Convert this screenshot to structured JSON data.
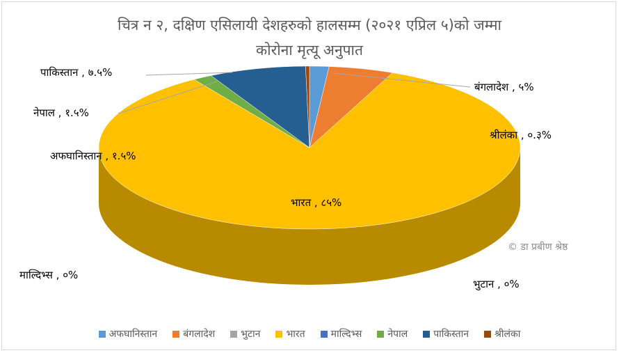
{
  "chart_data": {
    "type": "pie",
    "title_line1": "चित्र न २, दक्षिण एसिलायी देशहरुको हालसम्म (२०२१ एप्रिल ५)को जम्मा",
    "title_line2": "कोरोना मृत्यू अनुपात",
    "watermark": "© डा प्रबीण श्रेष्ठ",
    "slices": [
      {
        "name": "अफघानिस्तान",
        "value": 1.5,
        "label": "अफघानिस्तान , १.५%",
        "color": "#5b9bd5"
      },
      {
        "name": "बंगलादेश",
        "value": 5,
        "label": "बंगलादेश , ५%",
        "color": "#ed7d31"
      },
      {
        "name": "भुटान",
        "value": 0,
        "label": "भुटान ,   ०%",
        "color": "#a5a5a5"
      },
      {
        "name": "भारत",
        "value": 85,
        "label": "भारत , ८५%",
        "color": "#ffc000"
      },
      {
        "name": "माल्दिभ्स",
        "value": 0,
        "label": "माल्दिभ्स , ०%",
        "color": "#4472c4"
      },
      {
        "name": "नेपाल",
        "value": 1.5,
        "label": "नेपाल , १.५%",
        "color": "#70ad47"
      },
      {
        "name": "पाकिस्तान",
        "value": 7.5,
        "label": "पाकिस्तान , ७.५%",
        "color": "#255e91"
      },
      {
        "name": "श्रीलंका",
        "value": 0.3,
        "label": "श्रीलंका , ०.३%",
        "color": "#9e480e"
      }
    ],
    "legend_position": "bottom"
  }
}
